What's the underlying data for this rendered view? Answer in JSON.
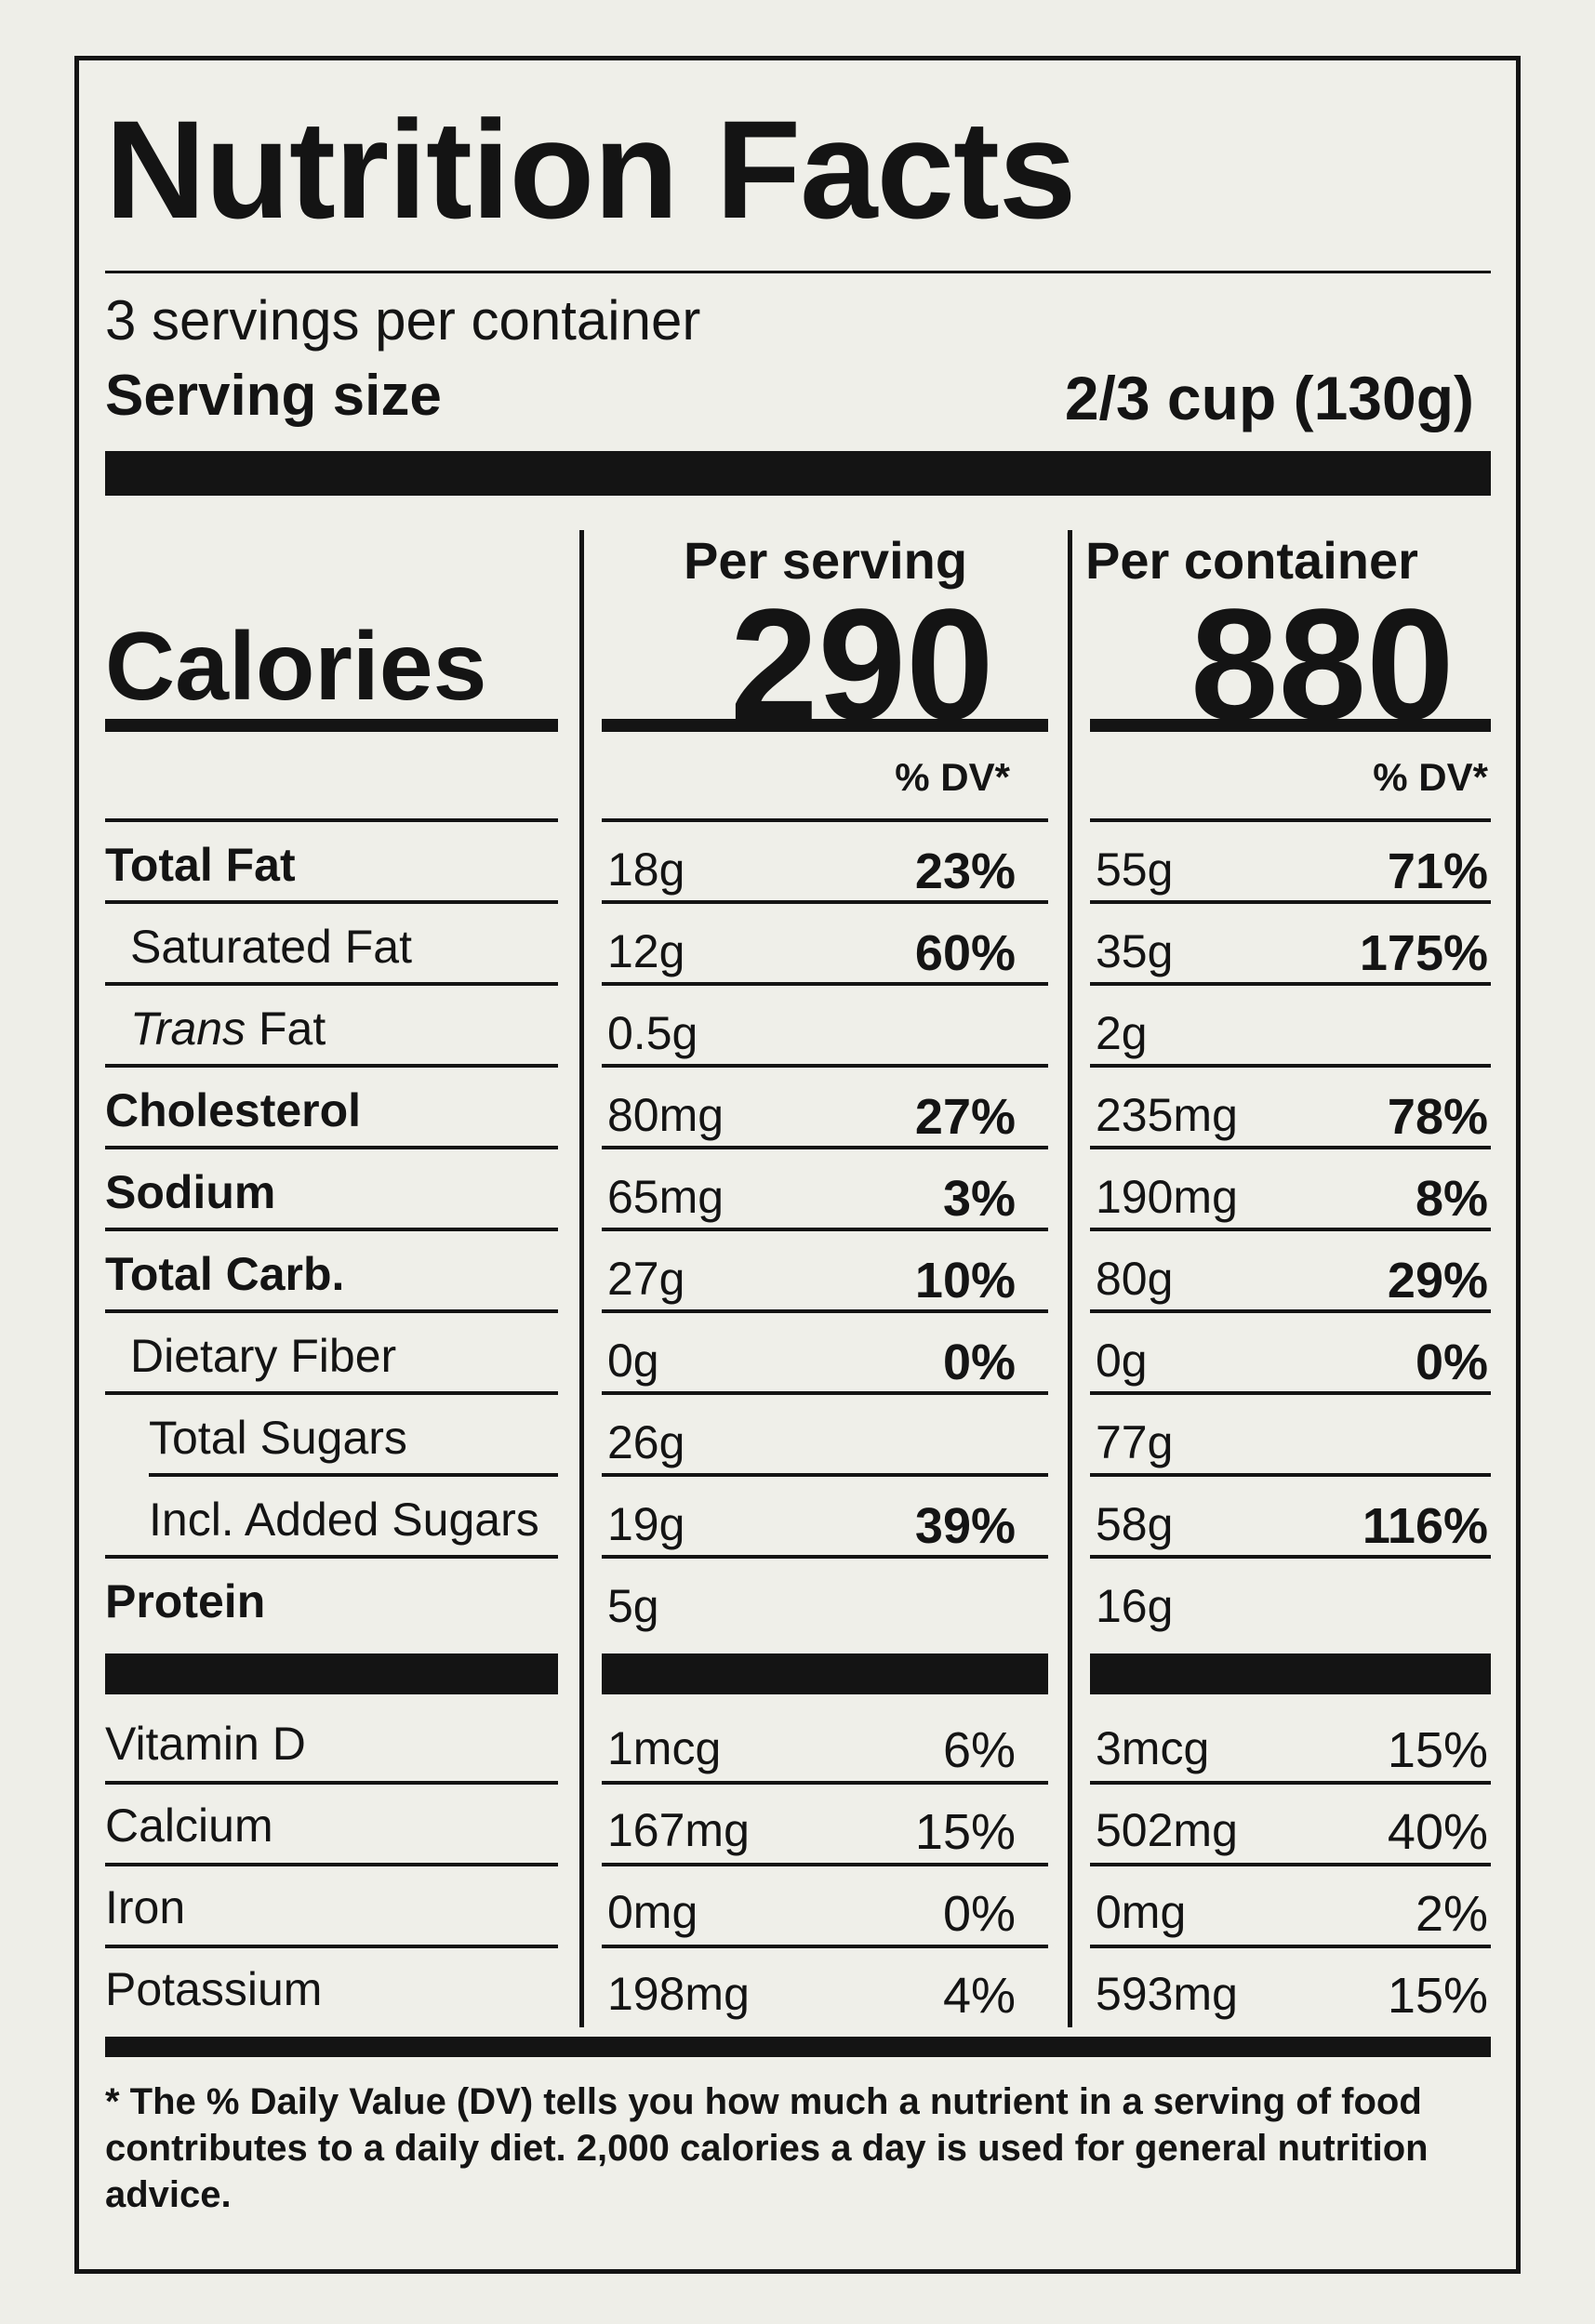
{
  "title": "Nutrition Facts",
  "servings_per_container": "3 servings per container",
  "serving_size_label": "Serving size",
  "serving_size_value": "2/3 cup (130g)",
  "calories_label": "Calories",
  "per_serving_label": "Per serving",
  "per_container_label": "Per container",
  "calories_per_serving": "290",
  "calories_per_container": "880",
  "dv_label": "% DV*",
  "nutrients": [
    {
      "name": "Total Fat",
      "serving_amount": "18g",
      "serving_dv": "23%",
      "container_amount": "55g",
      "container_dv": "71%"
    },
    {
      "name": "Saturated Fat",
      "serving_amount": "12g",
      "serving_dv": "60%",
      "container_amount": "35g",
      "container_dv": "175%"
    },
    {
      "name_italic": "Trans",
      "name_rest": " Fat",
      "serving_amount": "0.5g",
      "serving_dv": "",
      "container_amount": "2g",
      "container_dv": ""
    },
    {
      "name": "Cholesterol",
      "serving_amount": "80mg",
      "serving_dv": "27%",
      "container_amount": "235mg",
      "container_dv": "78%"
    },
    {
      "name": "Sodium",
      "serving_amount": "65mg",
      "serving_dv": "3%",
      "container_amount": "190mg",
      "container_dv": "8%"
    },
    {
      "name": "Total Carb.",
      "serving_amount": "27g",
      "serving_dv": "10%",
      "container_amount": "80g",
      "container_dv": "29%"
    },
    {
      "name": "Dietary Fiber",
      "serving_amount": "0g",
      "serving_dv": "0%",
      "container_amount": "0g",
      "container_dv": "0%"
    },
    {
      "name": "Total Sugars",
      "serving_amount": "26g",
      "serving_dv": "",
      "container_amount": "77g",
      "container_dv": ""
    },
    {
      "name": "Incl. Added Sugars",
      "serving_amount": "19g",
      "serving_dv": "39%",
      "container_amount": "58g",
      "container_dv": "116%"
    },
    {
      "name": "Protein",
      "serving_amount": "5g",
      "serving_dv": "",
      "container_amount": "16g",
      "container_dv": ""
    }
  ],
  "vitamins": [
    {
      "name": "Vitamin D",
      "serving_amount": "1mcg",
      "serving_dv": "6%",
      "container_amount": "3mcg",
      "container_dv": "15%"
    },
    {
      "name": "Calcium",
      "serving_amount": "167mg",
      "serving_dv": "15%",
      "container_amount": "502mg",
      "container_dv": "40%"
    },
    {
      "name": "Iron",
      "serving_amount": "0mg",
      "serving_dv": "0%",
      "container_amount": "0mg",
      "container_dv": "2%"
    },
    {
      "name": "Potassium",
      "serving_amount": "198mg",
      "serving_dv": "4%",
      "container_amount": "593mg",
      "container_dv": "15%"
    }
  ],
  "footnote": "* The % Daily Value (DV) tells you how much a nutrient in a serving of food contributes to a daily diet. 2,000 calories a day is used for general nutrition advice."
}
